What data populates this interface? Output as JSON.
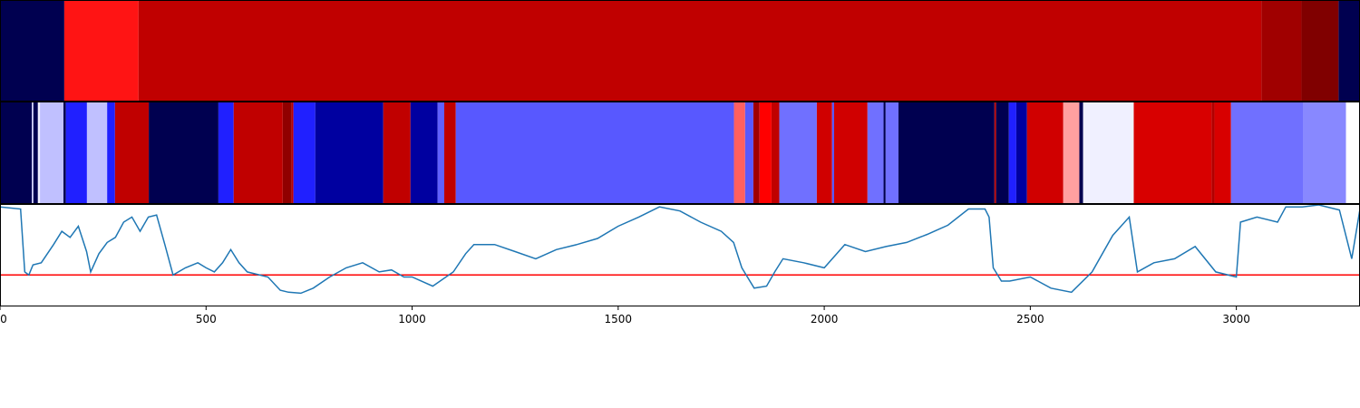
{
  "chart_data": [
    {
      "type": "strip",
      "segments": [
        {
          "start": 0,
          "end": 156,
          "color": "#000050"
        },
        {
          "start": 156,
          "end": 336,
          "color": "#ff1414"
        },
        {
          "start": 336,
          "end": 3061,
          "color": "#c00000"
        },
        {
          "start": 3061,
          "end": 3158,
          "color": "#a00000"
        },
        {
          "start": 3158,
          "end": 3248,
          "color": "#800000"
        },
        {
          "start": 3248,
          "end": 3300,
          "color": "#000050"
        }
      ]
    },
    {
      "type": "strip",
      "segments": [
        {
          "start": 0,
          "end": 77,
          "color": "#000050"
        },
        {
          "start": 77,
          "end": 81,
          "color": "#d0d0ff"
        },
        {
          "start": 81,
          "end": 92,
          "color": "#000050"
        },
        {
          "start": 92,
          "end": 97,
          "color": "#f0f0ff"
        },
        {
          "start": 97,
          "end": 154,
          "color": "#c0c0ff"
        },
        {
          "start": 154,
          "end": 160,
          "color": "#000050"
        },
        {
          "start": 160,
          "end": 211,
          "color": "#2020ff"
        },
        {
          "start": 211,
          "end": 260,
          "color": "#c0c0ff"
        },
        {
          "start": 260,
          "end": 279,
          "color": "#2020ff"
        },
        {
          "start": 279,
          "end": 361,
          "color": "#c00000"
        },
        {
          "start": 361,
          "end": 530,
          "color": "#000050"
        },
        {
          "start": 530,
          "end": 567,
          "color": "#2020ff"
        },
        {
          "start": 567,
          "end": 686,
          "color": "#c00000"
        },
        {
          "start": 686,
          "end": 708,
          "color": "#900000"
        },
        {
          "start": 708,
          "end": 712,
          "color": "#c00000"
        },
        {
          "start": 712,
          "end": 765,
          "color": "#2020ff"
        },
        {
          "start": 765,
          "end": 930,
          "color": "#0000a0"
        },
        {
          "start": 930,
          "end": 996,
          "color": "#c00000"
        },
        {
          "start": 996,
          "end": 1062,
          "color": "#0000a0"
        },
        {
          "start": 1062,
          "end": 1078,
          "color": "#6060ff"
        },
        {
          "start": 1078,
          "end": 1106,
          "color": "#c00000"
        },
        {
          "start": 1106,
          "end": 1781,
          "color": "#5858ff"
        },
        {
          "start": 1781,
          "end": 1808,
          "color": "#ff6060"
        },
        {
          "start": 1808,
          "end": 1828,
          "color": "#5858ff"
        },
        {
          "start": 1828,
          "end": 1843,
          "color": "#a00000"
        },
        {
          "start": 1843,
          "end": 1872,
          "color": "#ff0000"
        },
        {
          "start": 1872,
          "end": 1891,
          "color": "#c00000"
        },
        {
          "start": 1891,
          "end": 1982,
          "color": "#7070ff"
        },
        {
          "start": 1982,
          "end": 2019,
          "color": "#d00000"
        },
        {
          "start": 2019,
          "end": 2024,
          "color": "#5858ff"
        },
        {
          "start": 2024,
          "end": 2105,
          "color": "#d00000"
        },
        {
          "start": 2105,
          "end": 2144,
          "color": "#7070ff"
        },
        {
          "start": 2144,
          "end": 2149,
          "color": "#000050"
        },
        {
          "start": 2149,
          "end": 2180,
          "color": "#7070ff"
        },
        {
          "start": 2180,
          "end": 2413,
          "color": "#000050"
        },
        {
          "start": 2413,
          "end": 2417,
          "color": "#c00000"
        },
        {
          "start": 2417,
          "end": 2448,
          "color": "#000050"
        },
        {
          "start": 2448,
          "end": 2466,
          "color": "#2020ff"
        },
        {
          "start": 2466,
          "end": 2492,
          "color": "#0000a0"
        },
        {
          "start": 2492,
          "end": 2580,
          "color": "#d00000"
        },
        {
          "start": 2580,
          "end": 2619,
          "color": "#ffa0a0"
        },
        {
          "start": 2619,
          "end": 2628,
          "color": "#000050"
        },
        {
          "start": 2628,
          "end": 2751,
          "color": "#f0f0ff"
        },
        {
          "start": 2751,
          "end": 2940,
          "color": "#d80000"
        },
        {
          "start": 2940,
          "end": 2947,
          "color": "#b00000"
        },
        {
          "start": 2947,
          "end": 2987,
          "color": "#d80000"
        },
        {
          "start": 2987,
          "end": 3163,
          "color": "#7070ff"
        },
        {
          "start": 3163,
          "end": 3266,
          "color": "#8888ff"
        },
        {
          "start": 3266,
          "end": 3300,
          "color": "#ffffff"
        }
      ]
    },
    {
      "type": "line",
      "color": "#1f77b4",
      "x": [
        0,
        50,
        60,
        70,
        80,
        100,
        130,
        150,
        170,
        190,
        210,
        220,
        240,
        260,
        280,
        300,
        320,
        340,
        360,
        380,
        400,
        420,
        450,
        480,
        500,
        520,
        540,
        560,
        580,
        600,
        650,
        680,
        700,
        730,
        760,
        800,
        840,
        880,
        920,
        950,
        980,
        1000,
        1050,
        1100,
        1130,
        1150,
        1200,
        1250,
        1300,
        1350,
        1400,
        1450,
        1500,
        1550,
        1600,
        1650,
        1700,
        1750,
        1780,
        1800,
        1830,
        1860,
        1880,
        1900,
        1950,
        2000,
        2050,
        2100,
        2150,
        2200,
        2250,
        2300,
        2350,
        2390,
        2400,
        2410,
        2430,
        2450,
        2500,
        2550,
        2600,
        2650,
        2700,
        2740,
        2760,
        2800,
        2850,
        2900,
        2950,
        3000,
        3010,
        3050,
        3100,
        3120,
        3160,
        3200,
        3250,
        3280,
        3300
      ],
      "values": [
        0.98,
        0.96,
        0.34,
        0.31,
        0.41,
        0.43,
        0.61,
        0.74,
        0.68,
        0.79,
        0.54,
        0.34,
        0.52,
        0.63,
        0.68,
        0.83,
        0.88,
        0.74,
        0.88,
        0.9,
        0.61,
        0.31,
        0.38,
        0.43,
        0.38,
        0.34,
        0.43,
        0.56,
        0.43,
        0.34,
        0.29,
        0.16,
        0.14,
        0.13,
        0.18,
        0.29,
        0.38,
        0.43,
        0.34,
        0.36,
        0.29,
        0.29,
        0.2,
        0.34,
        0.52,
        0.61,
        0.61,
        0.54,
        0.47,
        0.56,
        0.61,
        0.67,
        0.79,
        0.88,
        0.98,
        0.94,
        0.83,
        0.74,
        0.63,
        0.38,
        0.18,
        0.2,
        0.34,
        0.47,
        0.43,
        0.38,
        0.61,
        0.54,
        0.59,
        0.63,
        0.71,
        0.8,
        0.96,
        0.96,
        0.88,
        0.38,
        0.25,
        0.25,
        0.29,
        0.18,
        0.14,
        0.34,
        0.7,
        0.88,
        0.34,
        0.43,
        0.47,
        0.59,
        0.34,
        0.29,
        0.83,
        0.88,
        0.83,
        0.98,
        0.98,
        1.0,
        0.95,
        0.47,
        0.96
      ],
      "hline": 0.31,
      "hline_color": "#ff0000",
      "xlim": [
        0,
        3300
      ],
      "ylim": [
        0,
        1
      ],
      "xticks": [
        0,
        500,
        1000,
        1500,
        2000,
        2500,
        3000
      ]
    }
  ]
}
